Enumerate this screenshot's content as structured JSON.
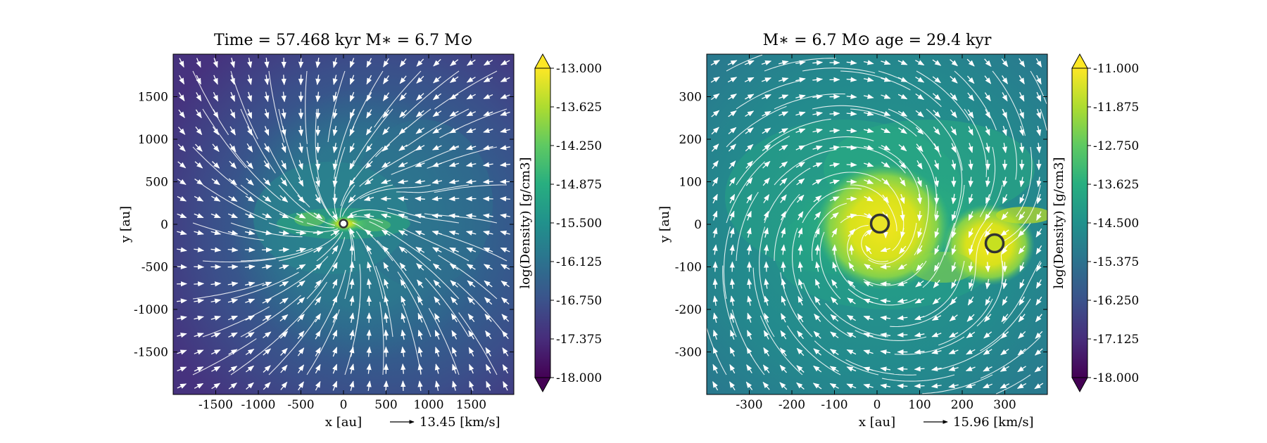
{
  "chart_data": [
    {
      "type": "heatmap",
      "title": "Time = 57.468 kyr    M∗ = 6.7 M⊙",
      "xlabel": "x [au]",
      "ylabel": "y [au]",
      "xlim": [
        -2000,
        2000
      ],
      "ylim": [
        -2000,
        2000
      ],
      "xticks": [
        -1500,
        -1000,
        -500,
        0,
        500,
        1000,
        1500
      ],
      "yticks": [
        1500,
        1000,
        500,
        0,
        -500,
        -1000,
        -1500
      ],
      "colorbar": {
        "label": "log(Density) [g/cm3]",
        "range": [
          -18.0,
          -13.0
        ],
        "ticks": [
          "-13.000",
          "-13.625",
          "-14.250",
          "-14.875",
          "-15.500",
          "-16.125",
          "-16.750",
          "-17.375",
          "-18.000"
        ]
      },
      "velocity_key": "13.45 [km/s]",
      "sinks": [
        {
          "x": 0,
          "y": 0
        }
      ],
      "overlay": "streamlines and velocity arrows"
    },
    {
      "type": "heatmap",
      "title": "M∗ = 6.7 M⊙          age = 29.4 kyr",
      "xlabel": "x [au]",
      "ylabel": "y [au]",
      "xlim": [
        -400,
        400
      ],
      "ylim": [
        -400,
        400
      ],
      "xticks": [
        -300,
        -200,
        -100,
        0,
        100,
        200,
        300
      ],
      "yticks": [
        300,
        200,
        100,
        0,
        -100,
        -200,
        -300
      ],
      "colorbar": {
        "label": "log(Density) [g/cm3]",
        "range": [
          -18.0,
          -11.0
        ],
        "ticks": [
          "-11.000",
          "-11.875",
          "-12.750",
          "-13.625",
          "-14.500",
          "-15.375",
          "-16.250",
          "-17.125",
          "-18.000"
        ]
      },
      "velocity_key": "15.96 [km/s]",
      "sinks": [
        {
          "x": 0,
          "y": 0
        },
        {
          "x": 270,
          "y": -50
        }
      ],
      "overlay": "streamlines and velocity arrows"
    }
  ],
  "colors": {
    "viridis_dark": "#440154",
    "viridis_mid": "#21918c",
    "viridis_bright": "#fde725",
    "stream": "#ffffff",
    "sink_edge": "#333333"
  }
}
